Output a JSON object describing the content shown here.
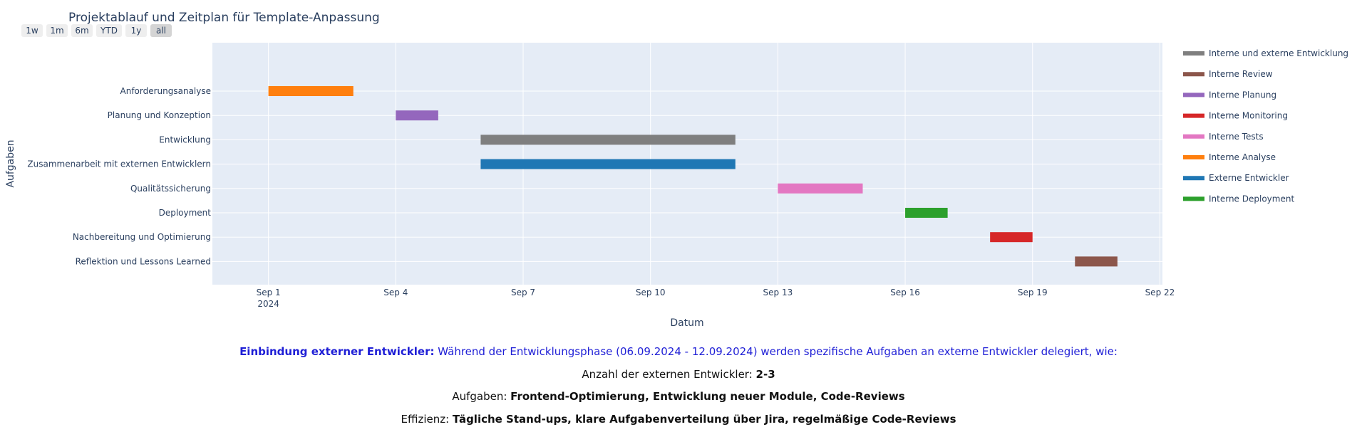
{
  "chart_data": {
    "type": "gantt",
    "title": "Projektablauf und Zeitplan für Template-Anpassung",
    "xlabel": "Datum",
    "ylabel": "Aufgaben",
    "xlim": [
      "2024-08-30",
      "2024-09-22"
    ],
    "x_ticks": [
      {
        "date": "2024-09-01",
        "label": "Sep 1",
        "sublabel": "2024"
      },
      {
        "date": "2024-09-04",
        "label": "Sep 4",
        "sublabel": ""
      },
      {
        "date": "2024-09-07",
        "label": "Sep 7",
        "sublabel": ""
      },
      {
        "date": "2024-09-10",
        "label": "Sep 10",
        "sublabel": ""
      },
      {
        "date": "2024-09-13",
        "label": "Sep 13",
        "sublabel": ""
      },
      {
        "date": "2024-09-16",
        "label": "Sep 16",
        "sublabel": ""
      },
      {
        "date": "2024-09-19",
        "label": "Sep 19",
        "sublabel": ""
      },
      {
        "date": "2024-09-22",
        "label": "Sep 22",
        "sublabel": ""
      }
    ],
    "grid": true,
    "legend_position": "right",
    "range_buttons": [
      "1w",
      "1m",
      "6m",
      "YTD",
      "1y",
      "all"
    ],
    "active_range_button": "all",
    "tasks": [
      {
        "name": "Anforderungsanalyse",
        "start": "2024-09-01",
        "end": "2024-09-03",
        "resource": "Interne Analyse"
      },
      {
        "name": "Planung und Konzeption",
        "start": "2024-09-04",
        "end": "2024-09-05",
        "resource": "Interne Planung"
      },
      {
        "name": "Entwicklung",
        "start": "2024-09-06",
        "end": "2024-09-12",
        "resource": "Interne und externe Entwicklung"
      },
      {
        "name": "Zusammenarbeit mit externen Entwicklern",
        "start": "2024-09-06",
        "end": "2024-09-12",
        "resource": "Externe Entwickler"
      },
      {
        "name": "Qualitätssicherung",
        "start": "2024-09-13",
        "end": "2024-09-15",
        "resource": "Interne Tests"
      },
      {
        "name": "Deployment",
        "start": "2024-09-16",
        "end": "2024-09-17",
        "resource": "Interne Deployment"
      },
      {
        "name": "Nachbereitung und Optimierung",
        "start": "2024-09-18",
        "end": "2024-09-19",
        "resource": "Interne Monitoring"
      },
      {
        "name": "Reflektion und Lessons Learned",
        "start": "2024-09-20",
        "end": "2024-09-21",
        "resource": "Interne Review"
      }
    ],
    "legend": [
      {
        "name": "Interne und externe Entwicklung",
        "color": "#7f7f7f"
      },
      {
        "name": "Interne Review",
        "color": "#8c564b"
      },
      {
        "name": "Interne Planung",
        "color": "#9467bd"
      },
      {
        "name": "Interne Monitoring",
        "color": "#d62728"
      },
      {
        "name": "Interne Tests",
        "color": "#e377c2"
      },
      {
        "name": "Interne Analyse",
        "color": "#ff7f0e"
      },
      {
        "name": "Externe Entwickler",
        "color": "#1f77b4"
      },
      {
        "name": "Interne Deployment",
        "color": "#2ca02c"
      }
    ]
  },
  "annotations": {
    "line1_label": "Einbindung externer Entwickler:",
    "line1_text": " Während der Entwicklungsphase (06.09.2024 - 12.09.2024) werden spezifische Aufgaben an externe Entwickler delegiert, wie:",
    "line2_label": "Anzahl der externen Entwickler: ",
    "line2_value": "2-3",
    "line3_label": "Aufgaben: ",
    "line3_value": "Frontend-Optimierung, Entwicklung neuer Module, Code-Reviews",
    "line4_label": "Effizienz: ",
    "line4_value": "Tägliche Stand-ups, klare Aufgabenverteilung über Jira, regelmäßige Code-Reviews"
  }
}
